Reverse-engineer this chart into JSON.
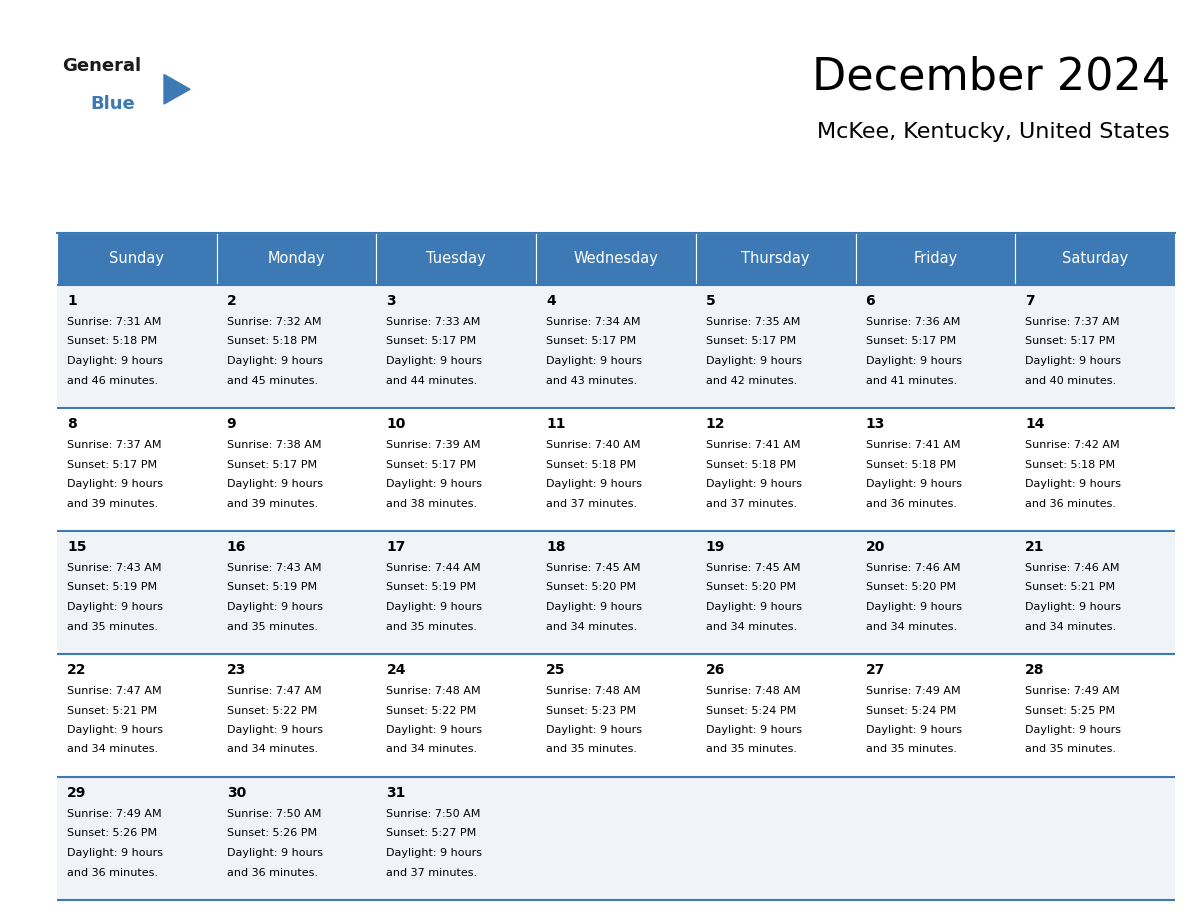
{
  "title": "December 2024",
  "subtitle": "McKee, Kentucky, United States",
  "header_color": "#3d7ab5",
  "header_text_color": "#ffffff",
  "days_of_week": [
    "Sunday",
    "Monday",
    "Tuesday",
    "Wednesday",
    "Thursday",
    "Friday",
    "Saturday"
  ],
  "cell_bg_light": "#f0f4f8",
  "cell_bg_white": "#ffffff",
  "cell_border_color": "#3d7ab5",
  "calendar": [
    [
      {
        "day": "1",
        "sunrise": "7:31 AM",
        "sunset": "5:18 PM",
        "dl1": "9 hours",
        "dl2": "and 46 minutes."
      },
      {
        "day": "2",
        "sunrise": "7:32 AM",
        "sunset": "5:18 PM",
        "dl1": "9 hours",
        "dl2": "and 45 minutes."
      },
      {
        "day": "3",
        "sunrise": "7:33 AM",
        "sunset": "5:17 PM",
        "dl1": "9 hours",
        "dl2": "and 44 minutes."
      },
      {
        "day": "4",
        "sunrise": "7:34 AM",
        "sunset": "5:17 PM",
        "dl1": "9 hours",
        "dl2": "and 43 minutes."
      },
      {
        "day": "5",
        "sunrise": "7:35 AM",
        "sunset": "5:17 PM",
        "dl1": "9 hours",
        "dl2": "and 42 minutes."
      },
      {
        "day": "6",
        "sunrise": "7:36 AM",
        "sunset": "5:17 PM",
        "dl1": "9 hours",
        "dl2": "and 41 minutes."
      },
      {
        "day": "7",
        "sunrise": "7:37 AM",
        "sunset": "5:17 PM",
        "dl1": "9 hours",
        "dl2": "and 40 minutes."
      }
    ],
    [
      {
        "day": "8",
        "sunrise": "7:37 AM",
        "sunset": "5:17 PM",
        "dl1": "9 hours",
        "dl2": "and 39 minutes."
      },
      {
        "day": "9",
        "sunrise": "7:38 AM",
        "sunset": "5:17 PM",
        "dl1": "9 hours",
        "dl2": "and 39 minutes."
      },
      {
        "day": "10",
        "sunrise": "7:39 AM",
        "sunset": "5:17 PM",
        "dl1": "9 hours",
        "dl2": "and 38 minutes."
      },
      {
        "day": "11",
        "sunrise": "7:40 AM",
        "sunset": "5:18 PM",
        "dl1": "9 hours",
        "dl2": "and 37 minutes."
      },
      {
        "day": "12",
        "sunrise": "7:41 AM",
        "sunset": "5:18 PM",
        "dl1": "9 hours",
        "dl2": "and 37 minutes."
      },
      {
        "day": "13",
        "sunrise": "7:41 AM",
        "sunset": "5:18 PM",
        "dl1": "9 hours",
        "dl2": "and 36 minutes."
      },
      {
        "day": "14",
        "sunrise": "7:42 AM",
        "sunset": "5:18 PM",
        "dl1": "9 hours",
        "dl2": "and 36 minutes."
      }
    ],
    [
      {
        "day": "15",
        "sunrise": "7:43 AM",
        "sunset": "5:19 PM",
        "dl1": "9 hours",
        "dl2": "and 35 minutes."
      },
      {
        "day": "16",
        "sunrise": "7:43 AM",
        "sunset": "5:19 PM",
        "dl1": "9 hours",
        "dl2": "and 35 minutes."
      },
      {
        "day": "17",
        "sunrise": "7:44 AM",
        "sunset": "5:19 PM",
        "dl1": "9 hours",
        "dl2": "and 35 minutes."
      },
      {
        "day": "18",
        "sunrise": "7:45 AM",
        "sunset": "5:20 PM",
        "dl1": "9 hours",
        "dl2": "and 34 minutes."
      },
      {
        "day": "19",
        "sunrise": "7:45 AM",
        "sunset": "5:20 PM",
        "dl1": "9 hours",
        "dl2": "and 34 minutes."
      },
      {
        "day": "20",
        "sunrise": "7:46 AM",
        "sunset": "5:20 PM",
        "dl1": "9 hours",
        "dl2": "and 34 minutes."
      },
      {
        "day": "21",
        "sunrise": "7:46 AM",
        "sunset": "5:21 PM",
        "dl1": "9 hours",
        "dl2": "and 34 minutes."
      }
    ],
    [
      {
        "day": "22",
        "sunrise": "7:47 AM",
        "sunset": "5:21 PM",
        "dl1": "9 hours",
        "dl2": "and 34 minutes."
      },
      {
        "day": "23",
        "sunrise": "7:47 AM",
        "sunset": "5:22 PM",
        "dl1": "9 hours",
        "dl2": "and 34 minutes."
      },
      {
        "day": "24",
        "sunrise": "7:48 AM",
        "sunset": "5:22 PM",
        "dl1": "9 hours",
        "dl2": "and 34 minutes."
      },
      {
        "day": "25",
        "sunrise": "7:48 AM",
        "sunset": "5:23 PM",
        "dl1": "9 hours",
        "dl2": "and 35 minutes."
      },
      {
        "day": "26",
        "sunrise": "7:48 AM",
        "sunset": "5:24 PM",
        "dl1": "9 hours",
        "dl2": "and 35 minutes."
      },
      {
        "day": "27",
        "sunrise": "7:49 AM",
        "sunset": "5:24 PM",
        "dl1": "9 hours",
        "dl2": "and 35 minutes."
      },
      {
        "day": "28",
        "sunrise": "7:49 AM",
        "sunset": "5:25 PM",
        "dl1": "9 hours",
        "dl2": "and 35 minutes."
      }
    ],
    [
      {
        "day": "29",
        "sunrise": "7:49 AM",
        "sunset": "5:26 PM",
        "dl1": "9 hours",
        "dl2": "and 36 minutes."
      },
      {
        "day": "30",
        "sunrise": "7:50 AM",
        "sunset": "5:26 PM",
        "dl1": "9 hours",
        "dl2": "and 36 minutes."
      },
      {
        "day": "31",
        "sunrise": "7:50 AM",
        "sunset": "5:27 PM",
        "dl1": "9 hours",
        "dl2": "and 37 minutes."
      },
      null,
      null,
      null,
      null
    ]
  ]
}
